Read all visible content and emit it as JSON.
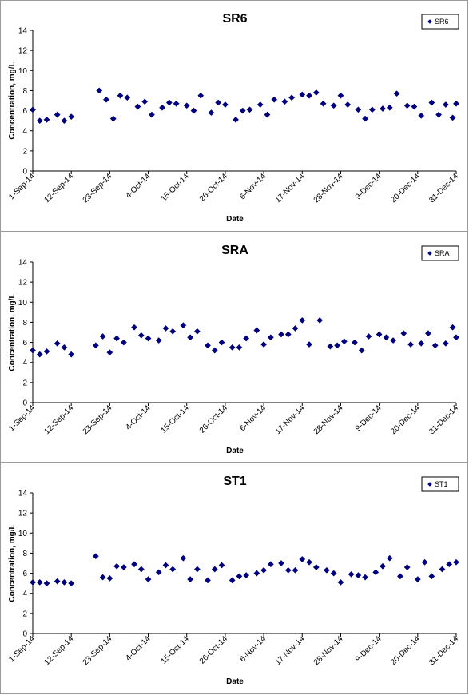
{
  "chart_data": [
    {
      "type": "scatter",
      "title": "SR6",
      "xlabel": "Date",
      "ylabel": "Concentration, mg/L",
      "ylim": [
        0,
        14
      ],
      "yticks": [
        0,
        2,
        4,
        6,
        8,
        10,
        12,
        14
      ],
      "xlim": [
        "1-Sep-14",
        "31-Dec-14"
      ],
      "xticks": [
        "1-Sep-14",
        "12-Sep-14",
        "23-Sep-14",
        "4-Oct-14",
        "15-Oct-14",
        "26-Oct-14",
        "6-Nov-14",
        "17-Nov-14",
        "28-Nov-14",
        "9-Dec-14",
        "20-Dec-14",
        "31-Dec-14"
      ],
      "legend": "top-right",
      "color": "#00007f",
      "series": [
        {
          "name": "SR6",
          "points": [
            [
              "1-Sep-14",
              6.1
            ],
            [
              "3-Sep-14",
              5.0
            ],
            [
              "5-Sep-14",
              5.1
            ],
            [
              "8-Sep-14",
              5.6
            ],
            [
              "10-Sep-14",
              5.0
            ],
            [
              "12-Sep-14",
              5.4
            ],
            [
              "20-Sep-14",
              8.0
            ],
            [
              "22-Sep-14",
              7.1
            ],
            [
              "24-Sep-14",
              5.2
            ],
            [
              "26-Sep-14",
              7.5
            ],
            [
              "28-Sep-14",
              7.3
            ],
            [
              "1-Oct-14",
              6.4
            ],
            [
              "3-Oct-14",
              6.9
            ],
            [
              "5-Oct-14",
              5.6
            ],
            [
              "8-Oct-14",
              6.3
            ],
            [
              "10-Oct-14",
              6.8
            ],
            [
              "12-Oct-14",
              6.7
            ],
            [
              "15-Oct-14",
              6.5
            ],
            [
              "17-Oct-14",
              6.0
            ],
            [
              "19-Oct-14",
              7.5
            ],
            [
              "22-Oct-14",
              5.8
            ],
            [
              "24-Oct-14",
              6.8
            ],
            [
              "26-Oct-14",
              6.6
            ],
            [
              "29-Oct-14",
              5.1
            ],
            [
              "31-Oct-14",
              6.0
            ],
            [
              "2-Nov-14",
              6.1
            ],
            [
              "5-Nov-14",
              6.6
            ],
            [
              "7-Nov-14",
              5.6
            ],
            [
              "9-Nov-14",
              7.1
            ],
            [
              "12-Nov-14",
              6.9
            ],
            [
              "14-Nov-14",
              7.3
            ],
            [
              "17-Nov-14",
              7.6
            ],
            [
              "19-Nov-14",
              7.5
            ],
            [
              "21-Nov-14",
              7.8
            ],
            [
              "23-Nov-14",
              6.7
            ],
            [
              "26-Nov-14",
              6.5
            ],
            [
              "28-Nov-14",
              7.5
            ],
            [
              "30-Nov-14",
              6.6
            ],
            [
              "3-Dec-14",
              6.1
            ],
            [
              "5-Dec-14",
              5.2
            ],
            [
              "7-Dec-14",
              6.1
            ],
            [
              "10-Dec-14",
              6.2
            ],
            [
              "12-Dec-14",
              6.3
            ],
            [
              "14-Dec-14",
              7.7
            ],
            [
              "17-Dec-14",
              6.5
            ],
            [
              "19-Dec-14",
              6.4
            ],
            [
              "21-Dec-14",
              5.5
            ],
            [
              "24-Dec-14",
              6.8
            ],
            [
              "26-Dec-14",
              5.6
            ],
            [
              "28-Dec-14",
              6.6
            ],
            [
              "30-Dec-14",
              5.3
            ],
            [
              "31-Dec-14",
              6.7
            ]
          ]
        }
      ]
    },
    {
      "type": "scatter",
      "title": "SRA",
      "xlabel": "Date",
      "ylabel": "Concentration, mg/L",
      "ylim": [
        0,
        14
      ],
      "yticks": [
        0,
        2,
        4,
        6,
        8,
        10,
        12,
        14
      ],
      "xlim": [
        "1-Sep-14",
        "31-Dec-14"
      ],
      "xticks": [
        "1-Sep-14",
        "12-Sep-14",
        "23-Sep-14",
        "4-Oct-14",
        "15-Oct-14",
        "26-Oct-14",
        "6-Nov-14",
        "17-Nov-14",
        "28-Nov-14",
        "9-Dec-14",
        "20-Dec-14",
        "31-Dec-14"
      ],
      "legend": "top-right",
      "color": "#00007f",
      "series": [
        {
          "name": "SRA",
          "points": [
            [
              "1-Sep-14",
              5.2
            ],
            [
              "3-Sep-14",
              4.8
            ],
            [
              "5-Sep-14",
              5.1
            ],
            [
              "8-Sep-14",
              5.9
            ],
            [
              "10-Sep-14",
              5.5
            ],
            [
              "12-Sep-14",
              4.8
            ],
            [
              "19-Sep-14",
              5.7
            ],
            [
              "21-Sep-14",
              6.6
            ],
            [
              "23-Sep-14",
              5.0
            ],
            [
              "25-Sep-14",
              6.4
            ],
            [
              "27-Sep-14",
              6.0
            ],
            [
              "30-Sep-14",
              7.5
            ],
            [
              "2-Oct-14",
              6.7
            ],
            [
              "4-Oct-14",
              6.4
            ],
            [
              "7-Oct-14",
              6.2
            ],
            [
              "9-Oct-14",
              7.4
            ],
            [
              "11-Oct-14",
              7.1
            ],
            [
              "14-Oct-14",
              7.7
            ],
            [
              "16-Oct-14",
              6.5
            ],
            [
              "18-Oct-14",
              7.1
            ],
            [
              "21-Oct-14",
              5.7
            ],
            [
              "23-Oct-14",
              5.2
            ],
            [
              "25-Oct-14",
              6.0
            ],
            [
              "28-Oct-14",
              5.5
            ],
            [
              "30-Oct-14",
              5.5
            ],
            [
              "1-Nov-14",
              6.4
            ],
            [
              "4-Nov-14",
              7.2
            ],
            [
              "6-Nov-14",
              5.8
            ],
            [
              "8-Nov-14",
              6.5
            ],
            [
              "11-Nov-14",
              6.8
            ],
            [
              "13-Nov-14",
              6.8
            ],
            [
              "15-Nov-14",
              7.4
            ],
            [
              "17-Nov-14",
              8.2
            ],
            [
              "19-Nov-14",
              5.8
            ],
            [
              "22-Nov-14",
              8.2
            ],
            [
              "25-Nov-14",
              5.6
            ],
            [
              "27-Nov-14",
              5.7
            ],
            [
              "29-Nov-14",
              6.1
            ],
            [
              "2-Dec-14",
              6.0
            ],
            [
              "4-Dec-14",
              5.2
            ],
            [
              "6-Dec-14",
              6.6
            ],
            [
              "9-Dec-14",
              6.8
            ],
            [
              "11-Dec-14",
              6.5
            ],
            [
              "13-Dec-14",
              6.2
            ],
            [
              "16-Dec-14",
              6.9
            ],
            [
              "18-Dec-14",
              5.8
            ],
            [
              "21-Dec-14",
              5.9
            ],
            [
              "23-Dec-14",
              6.9
            ],
            [
              "25-Dec-14",
              5.7
            ],
            [
              "28-Dec-14",
              5.9
            ],
            [
              "30-Dec-14",
              7.5
            ],
            [
              "31-Dec-14",
              6.5
            ]
          ]
        }
      ]
    },
    {
      "type": "scatter",
      "title": "ST1",
      "xlabel": "Date",
      "ylabel": "Concentration, mg/L",
      "ylim": [
        0,
        14
      ],
      "yticks": [
        0,
        2,
        4,
        6,
        8,
        10,
        12,
        14
      ],
      "xlim": [
        "1-Sep-14",
        "31-Dec-14"
      ],
      "xticks": [
        "1-Sep-14",
        "12-Sep-14",
        "23-Sep-14",
        "4-Oct-14",
        "15-Oct-14",
        "26-Oct-14",
        "6-Nov-14",
        "17-Nov-14",
        "28-Nov-14",
        "9-Dec-14",
        "20-Dec-14",
        "31-Dec-14"
      ],
      "legend": "top-right",
      "color": "#00007f",
      "series": [
        {
          "name": "ST1",
          "points": [
            [
              "1-Sep-14",
              5.1
            ],
            [
              "3-Sep-14",
              5.1
            ],
            [
              "5-Sep-14",
              5.0
            ],
            [
              "8-Sep-14",
              5.2
            ],
            [
              "10-Sep-14",
              5.1
            ],
            [
              "12-Sep-14",
              5.0
            ],
            [
              "19-Sep-14",
              7.7
            ],
            [
              "21-Sep-14",
              5.6
            ],
            [
              "23-Sep-14",
              5.5
            ],
            [
              "25-Sep-14",
              6.7
            ],
            [
              "27-Sep-14",
              6.6
            ],
            [
              "30-Sep-14",
              6.9
            ],
            [
              "2-Oct-14",
              6.4
            ],
            [
              "4-Oct-14",
              5.4
            ],
            [
              "7-Oct-14",
              6.1
            ],
            [
              "9-Oct-14",
              6.8
            ],
            [
              "11-Oct-14",
              6.4
            ],
            [
              "14-Oct-14",
              7.5
            ],
            [
              "16-Oct-14",
              5.4
            ],
            [
              "18-Oct-14",
              6.4
            ],
            [
              "21-Oct-14",
              5.3
            ],
            [
              "23-Oct-14",
              6.4
            ],
            [
              "25-Oct-14",
              6.8
            ],
            [
              "28-Oct-14",
              5.3
            ],
            [
              "30-Oct-14",
              5.7
            ],
            [
              "1-Nov-14",
              5.8
            ],
            [
              "4-Nov-14",
              6.0
            ],
            [
              "6-Nov-14",
              6.3
            ],
            [
              "8-Nov-14",
              6.9
            ],
            [
              "11-Nov-14",
              7.0
            ],
            [
              "13-Nov-14",
              6.3
            ],
            [
              "15-Nov-14",
              6.3
            ],
            [
              "17-Nov-14",
              7.4
            ],
            [
              "19-Nov-14",
              7.1
            ],
            [
              "21-Nov-14",
              6.6
            ],
            [
              "24-Nov-14",
              6.3
            ],
            [
              "26-Nov-14",
              6.0
            ],
            [
              "28-Nov-14",
              5.1
            ],
            [
              "1-Dec-14",
              5.9
            ],
            [
              "3-Dec-14",
              5.8
            ],
            [
              "5-Dec-14",
              5.6
            ],
            [
              "8-Dec-14",
              6.1
            ],
            [
              "10-Dec-14",
              6.7
            ],
            [
              "12-Dec-14",
              7.5
            ],
            [
              "15-Dec-14",
              5.7
            ],
            [
              "17-Dec-14",
              6.6
            ],
            [
              "20-Dec-14",
              5.4
            ],
            [
              "22-Dec-14",
              7.1
            ],
            [
              "24-Dec-14",
              5.7
            ],
            [
              "27-Dec-14",
              6.4
            ],
            [
              "29-Dec-14",
              6.9
            ],
            [
              "31-Dec-14",
              7.1
            ]
          ]
        }
      ]
    }
  ]
}
